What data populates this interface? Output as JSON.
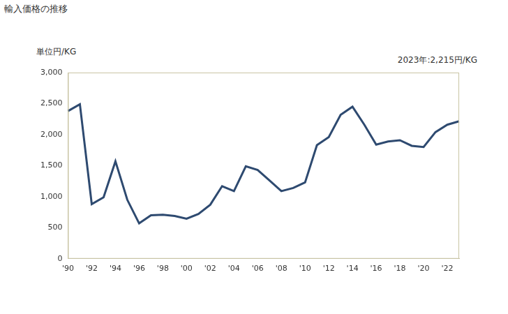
{
  "chart_data": {
    "type": "line",
    "title": "輸入価格の推移",
    "y_label": "単位円/KG",
    "annotation": "2023年:2,215円/KG",
    "categories": [
      "'90",
      null,
      "'92",
      null,
      "'94",
      null,
      "'96",
      null,
      "'98",
      null,
      "'00",
      null,
      "'02",
      null,
      "'04",
      null,
      "'06",
      null,
      "'08",
      null,
      "'10",
      null,
      "'12",
      null,
      "'14",
      null,
      "'16",
      null,
      "'18",
      null,
      "'20",
      null,
      "'22",
      null
    ],
    "values": [
      2380,
      2490,
      880,
      990,
      1570,
      950,
      570,
      700,
      710,
      690,
      645,
      720,
      870,
      1170,
      1090,
      1490,
      1430,
      1260,
      1090,
      1140,
      1230,
      1830,
      1960,
      2320,
      2450,
      2160,
      1840,
      1890,
      1910,
      1820,
      1800,
      2040,
      2160,
      2215
    ],
    "color": "#2e4a70",
    "ylim": [
      0,
      3000
    ],
    "yticks": [
      0,
      500,
      {
        "value": 1000,
        "label": "1,000"
      },
      {
        "value": 1500,
        "label": "1,500"
      },
      {
        "value": 2000,
        "label": "2,000"
      },
      {
        "value": 2500,
        "label": "2,500"
      },
      {
        "value": 3000,
        "label": "3,000"
      }
    ],
    "grid": false
  }
}
